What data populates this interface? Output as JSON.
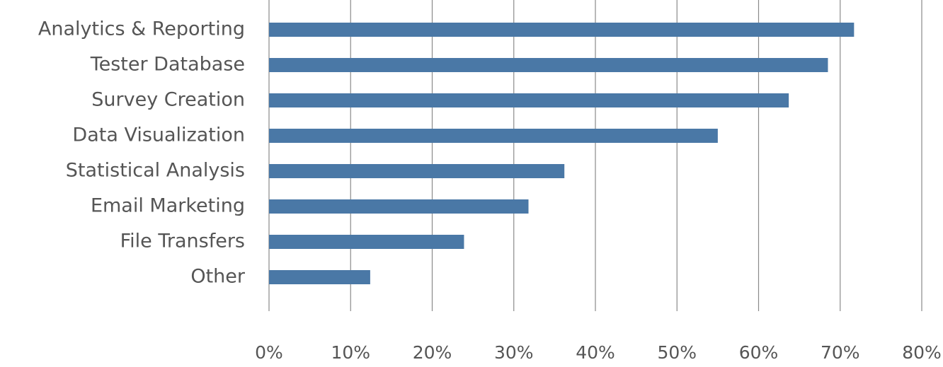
{
  "chart_data": {
    "type": "bar",
    "orientation": "horizontal",
    "categories": [
      "Analytics & Reporting",
      "Tester Database",
      "Survey Creation",
      "Data Visualization",
      "Statistical Analysis",
      "Email Marketing",
      "File Transfers",
      "Other"
    ],
    "values": [
      71.7,
      68.5,
      63.7,
      55,
      36.2,
      31.8,
      23.9,
      12.4
    ],
    "color": "#4a78a6",
    "xlim": [
      0,
      80
    ],
    "xticks": [
      {
        "value": 0,
        "label": "0%"
      },
      {
        "value": 10,
        "label": "10%"
      },
      {
        "value": 20,
        "label": "20%"
      },
      {
        "value": 30,
        "label": "30%"
      },
      {
        "value": 40,
        "label": "40%"
      },
      {
        "value": 50,
        "label": "50%"
      },
      {
        "value": 60,
        "label": "60%"
      },
      {
        "value": 70,
        "label": "70%"
      },
      {
        "value": 80,
        "label": "80%"
      }
    ],
    "grid": true
  }
}
